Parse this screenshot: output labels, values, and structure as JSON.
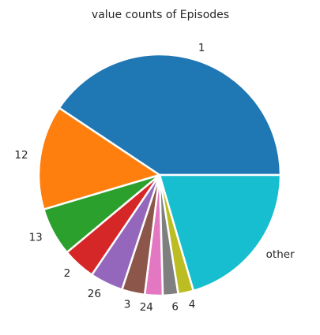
{
  "chart_data": {
    "type": "pie",
    "title": "value counts of Episodes",
    "categories": [
      "1",
      "12",
      "13",
      "2",
      "26",
      "3",
      "24",
      "6",
      "4",
      "other"
    ],
    "values": [
      119,
      41,
      19,
      13,
      13,
      9,
      7,
      6,
      6,
      60
    ],
    "colors": [
      "#1f77b4",
      "#ff7f0e",
      "#2ca02c",
      "#d62728",
      "#9467bd",
      "#8c564b",
      "#e377c2",
      "#7f7f7f",
      "#bcbd22",
      "#17becf"
    ],
    "start_angle_deg": 0,
    "direction": "counterclockwise"
  }
}
